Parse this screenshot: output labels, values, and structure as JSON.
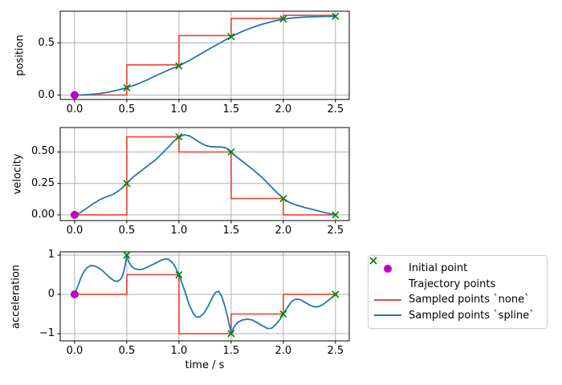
{
  "figure": {
    "background": "#ffffff",
    "xlabel": "time / s"
  },
  "colors": {
    "grid": "#b0b0b0",
    "spine": "#000000",
    "tick": "#000000",
    "initial_point": "#bf00bf",
    "trajectory_points": "#008000",
    "sampled_none": "#e8533f",
    "sampled_spline": "#1f77b4"
  },
  "legend": {
    "items": [
      {
        "label": "Initial point",
        "marker": "circle",
        "color": "#bf00bf"
      },
      {
        "label": "Trajectory points",
        "marker": "x",
        "color": "#008000"
      },
      {
        "label": "Sampled points `none`",
        "marker": "line",
        "color": "#e8533f"
      },
      {
        "label": "Sampled points `spline`",
        "marker": "line",
        "color": "#1f77b4"
      }
    ]
  },
  "chart_data": [
    {
      "type": "line",
      "title": "",
      "xlabel": "",
      "ylabel": "position",
      "grid": true,
      "xlim": [
        -0.138,
        2.632
      ],
      "ylim": [
        -0.042,
        0.804
      ],
      "xticks": {
        "values": [
          0,
          0.5,
          1.0,
          1.5,
          2.0,
          2.5
        ],
        "labels": [
          "0.0",
          "0.5",
          "1.0",
          "1.5",
          "2.0",
          "2.5"
        ]
      },
      "yticks": {
        "values": [
          0.0,
          0.5
        ],
        "labels": [
          "0.0",
          "0.5"
        ]
      },
      "series": [
        {
          "name": "Sampled points `none`",
          "kind": "line",
          "color": "#e8533f",
          "points": [
            [
              0,
              0
            ],
            [
              0.5,
              0
            ],
            [
              0.5,
              0.29
            ],
            [
              1,
              0.29
            ],
            [
              1,
              0.57
            ],
            [
              1.5,
              0.57
            ],
            [
              1.5,
              0.735
            ],
            [
              2,
              0.735
            ],
            [
              2,
              0.765
            ],
            [
              2.5,
              0.765
            ]
          ]
        },
        {
          "name": "Sampled points `spline`",
          "kind": "line",
          "color": "#1f77b4",
          "points": [
            [
              0,
              0
            ],
            [
              0.08,
              0.002
            ],
            [
              0.16,
              0.007
            ],
            [
              0.24,
              0.015
            ],
            [
              0.32,
              0.027
            ],
            [
              0.4,
              0.044
            ],
            [
              0.5,
              0.07
            ],
            [
              0.6,
              0.105
            ],
            [
              0.7,
              0.148
            ],
            [
              0.8,
              0.196
            ],
            [
              0.9,
              0.24
            ],
            [
              1.0,
              0.28
            ],
            [
              1.1,
              0.332
            ],
            [
              1.2,
              0.39
            ],
            [
              1.3,
              0.447
            ],
            [
              1.4,
              0.503
            ],
            [
              1.5,
              0.56
            ],
            [
              1.6,
              0.607
            ],
            [
              1.7,
              0.647
            ],
            [
              1.8,
              0.68
            ],
            [
              1.9,
              0.707
            ],
            [
              2.0,
              0.728
            ],
            [
              2.1,
              0.741
            ],
            [
              2.2,
              0.748
            ],
            [
              2.3,
              0.752
            ],
            [
              2.4,
              0.754
            ],
            [
              2.5,
              0.755
            ]
          ]
        },
        {
          "name": "Trajectory points",
          "kind": "scatter",
          "marker": "x",
          "color": "#008000",
          "points": [
            [
              0.5,
              0.07
            ],
            [
              1.0,
              0.28
            ],
            [
              1.5,
              0.56
            ],
            [
              2.0,
              0.73
            ],
            [
              2.5,
              0.755
            ]
          ]
        },
        {
          "name": "Initial point",
          "kind": "scatter",
          "marker": "circle",
          "color": "#bf00bf",
          "points": [
            [
              0,
              0
            ]
          ]
        }
      ]
    },
    {
      "type": "line",
      "title": "",
      "xlabel": "",
      "ylabel": "velocity",
      "grid": true,
      "xlim": [
        -0.138,
        2.632
      ],
      "ylim": [
        -0.045,
        0.694
      ],
      "xticks": {
        "values": [
          0,
          0.5,
          1.0,
          1.5,
          2.0,
          2.5
        ],
        "labels": [
          "0.0",
          "0.5",
          "1.0",
          "1.5",
          "2.0",
          "2.5"
        ]
      },
      "yticks": {
        "values": [
          0.0,
          0.25,
          0.5
        ],
        "labels": [
          "0.00",
          "0.25",
          "0.50"
        ]
      },
      "series": [
        {
          "name": "Sampled points `none`",
          "kind": "line",
          "color": "#e8533f",
          "points": [
            [
              0,
              0
            ],
            [
              0.5,
              0
            ],
            [
              0.5,
              0.62
            ],
            [
              1,
              0.62
            ],
            [
              1,
              0.5
            ],
            [
              1.5,
              0.5
            ],
            [
              1.5,
              0.13
            ],
            [
              2,
              0.13
            ],
            [
              2,
              0
            ],
            [
              2.5,
              0
            ]
          ]
        },
        {
          "name": "Sampled points `spline`",
          "kind": "line",
          "color": "#1f77b4",
          "points": [
            [
              0,
              0
            ],
            [
              0.06,
              0.02
            ],
            [
              0.12,
              0.055
            ],
            [
              0.18,
              0.09
            ],
            [
              0.24,
              0.12
            ],
            [
              0.3,
              0.142
            ],
            [
              0.36,
              0.16
            ],
            [
              0.42,
              0.19
            ],
            [
              0.46,
              0.218
            ],
            [
              0.5,
              0.25
            ],
            [
              0.56,
              0.3
            ],
            [
              0.62,
              0.338
            ],
            [
              0.7,
              0.39
            ],
            [
              0.78,
              0.44
            ],
            [
              0.84,
              0.49
            ],
            [
              0.9,
              0.54
            ],
            [
              0.95,
              0.585
            ],
            [
              1.0,
              0.62
            ],
            [
              1.05,
              0.636
            ],
            [
              1.1,
              0.628
            ],
            [
              1.15,
              0.603
            ],
            [
              1.2,
              0.575
            ],
            [
              1.25,
              0.553
            ],
            [
              1.3,
              0.543
            ],
            [
              1.35,
              0.54
            ],
            [
              1.4,
              0.54
            ],
            [
              1.45,
              0.533
            ],
            [
              1.5,
              0.5
            ],
            [
              1.55,
              0.462
            ],
            [
              1.6,
              0.43
            ],
            [
              1.7,
              0.365
            ],
            [
              1.8,
              0.295
            ],
            [
              1.9,
              0.21
            ],
            [
              1.95,
              0.168
            ],
            [
              2.0,
              0.13
            ],
            [
              2.05,
              0.103
            ],
            [
              2.1,
              0.085
            ],
            [
              2.2,
              0.06
            ],
            [
              2.3,
              0.04
            ],
            [
              2.4,
              0.018
            ],
            [
              2.5,
              0.002
            ]
          ]
        },
        {
          "name": "Trajectory points",
          "kind": "scatter",
          "marker": "x",
          "color": "#008000",
          "points": [
            [
              0.5,
              0.25
            ],
            [
              1.0,
              0.62
            ],
            [
              1.5,
              0.5
            ],
            [
              2.0,
              0.13
            ],
            [
              2.5,
              0.0
            ]
          ]
        },
        {
          "name": "Initial point",
          "kind": "scatter",
          "marker": "circle",
          "color": "#bf00bf",
          "points": [
            [
              0,
              0
            ]
          ]
        }
      ]
    },
    {
      "type": "line",
      "title": "",
      "xlabel": "time / s",
      "ylabel": "acceleration",
      "grid": true,
      "xlim": [
        -0.138,
        2.632
      ],
      "ylim": [
        -1.184,
        1.082
      ],
      "xticks": {
        "values": [
          0,
          0.5,
          1.0,
          1.5,
          2.0,
          2.5
        ],
        "labels": [
          "0.0",
          "0.5",
          "1.0",
          "1.5",
          "2.0",
          "2.5"
        ]
      },
      "yticks": {
        "values": [
          -1,
          0,
          1
        ],
        "labels": [
          "−1",
          "0",
          "1"
        ]
      },
      "series": [
        {
          "name": "Sampled points `none`",
          "kind": "line",
          "color": "#e8533f",
          "points": [
            [
              0,
              0
            ],
            [
              0.5,
              0
            ],
            [
              0.5,
              0.5
            ],
            [
              1,
              0.5
            ],
            [
              1,
              -1
            ],
            [
              1.5,
              -1
            ],
            [
              1.5,
              -0.5
            ],
            [
              2,
              -0.5
            ],
            [
              2,
              0
            ],
            [
              2.5,
              0
            ]
          ]
        },
        {
          "name": "Sampled points `spline`",
          "kind": "line",
          "color": "#1f77b4",
          "points": [
            [
              0,
              0
            ],
            [
              0.03,
              0.2
            ],
            [
              0.06,
              0.42
            ],
            [
              0.09,
              0.58
            ],
            [
              0.12,
              0.68
            ],
            [
              0.15,
              0.73
            ],
            [
              0.18,
              0.728
            ],
            [
              0.22,
              0.69
            ],
            [
              0.26,
              0.62
            ],
            [
              0.3,
              0.52
            ],
            [
              0.34,
              0.42
            ],
            [
              0.38,
              0.345
            ],
            [
              0.41,
              0.33
            ],
            [
              0.44,
              0.38
            ],
            [
              0.46,
              0.48
            ],
            [
              0.48,
              0.68
            ],
            [
              0.5,
              0.98
            ],
            [
              0.52,
              0.82
            ],
            [
              0.55,
              0.7
            ],
            [
              0.58,
              0.65
            ],
            [
              0.62,
              0.63
            ],
            [
              0.66,
              0.65
            ],
            [
              0.72,
              0.72
            ],
            [
              0.78,
              0.8
            ],
            [
              0.83,
              0.87
            ],
            [
              0.87,
              0.9
            ],
            [
              0.9,
              0.895
            ],
            [
              0.94,
              0.8
            ],
            [
              0.97,
              0.67
            ],
            [
              1.0,
              0.5
            ],
            [
              1.03,
              0.28
            ],
            [
              1.06,
              0.05
            ],
            [
              1.1,
              -0.28
            ],
            [
              1.14,
              -0.5
            ],
            [
              1.17,
              -0.58
            ],
            [
              1.2,
              -0.57
            ],
            [
              1.24,
              -0.48
            ],
            [
              1.28,
              -0.3
            ],
            [
              1.32,
              -0.08
            ],
            [
              1.35,
              0.05
            ],
            [
              1.38,
              0.08
            ],
            [
              1.41,
              -0.05
            ],
            [
              1.44,
              -0.3
            ],
            [
              1.47,
              -0.62
            ],
            [
              1.5,
              -0.98
            ],
            [
              1.53,
              -0.82
            ],
            [
              1.56,
              -0.72
            ],
            [
              1.6,
              -0.66
            ],
            [
              1.65,
              -0.63
            ],
            [
              1.7,
              -0.65
            ],
            [
              1.75,
              -0.72
            ],
            [
              1.8,
              -0.8
            ],
            [
              1.85,
              -0.87
            ],
            [
              1.89,
              -0.86
            ],
            [
              1.93,
              -0.76
            ],
            [
              1.97,
              -0.63
            ],
            [
              2.0,
              -0.5
            ],
            [
              2.04,
              -0.33
            ],
            [
              2.08,
              -0.18
            ],
            [
              2.12,
              -0.12
            ],
            [
              2.16,
              -0.13
            ],
            [
              2.2,
              -0.19
            ],
            [
              2.25,
              -0.27
            ],
            [
              2.3,
              -0.32
            ],
            [
              2.34,
              -0.31
            ],
            [
              2.38,
              -0.26
            ],
            [
              2.42,
              -0.18
            ],
            [
              2.46,
              -0.09
            ],
            [
              2.5,
              0
            ]
          ]
        },
        {
          "name": "Trajectory points",
          "kind": "scatter",
          "marker": "x",
          "color": "#008000",
          "points": [
            [
              0.5,
              1.0
            ],
            [
              1.0,
              0.5
            ],
            [
              1.5,
              -1.0
            ],
            [
              2.0,
              -0.5
            ],
            [
              2.5,
              0.0
            ]
          ]
        },
        {
          "name": "Initial point",
          "kind": "scatter",
          "marker": "circle",
          "color": "#bf00bf",
          "points": [
            [
              0,
              0
            ]
          ]
        }
      ]
    }
  ]
}
